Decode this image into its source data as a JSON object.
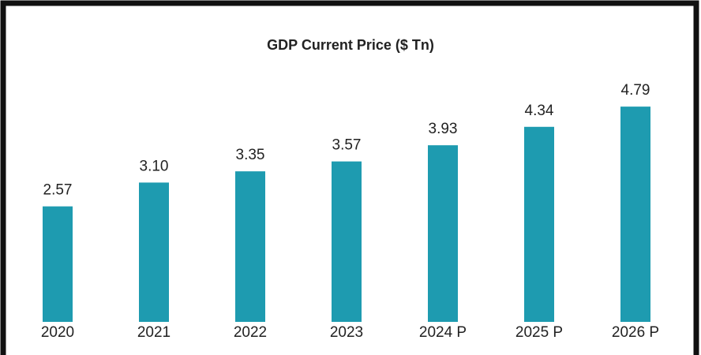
{
  "chart_data": {
    "type": "bar",
    "title": "GDP Current Price ($ Tn)",
    "categories": [
      "2020",
      "2021",
      "2022",
      "2023",
      "2024 P",
      "2025 P",
      "2026 P"
    ],
    "values": [
      2.57,
      3.1,
      3.35,
      3.57,
      3.93,
      4.34,
      4.79
    ],
    "value_labels": [
      "2.57",
      "3.10",
      "3.35",
      "3.57",
      "3.93",
      "4.34",
      "4.79"
    ],
    "color": "#1e9bb0",
    "ylim": [
      0,
      5.6
    ]
  }
}
